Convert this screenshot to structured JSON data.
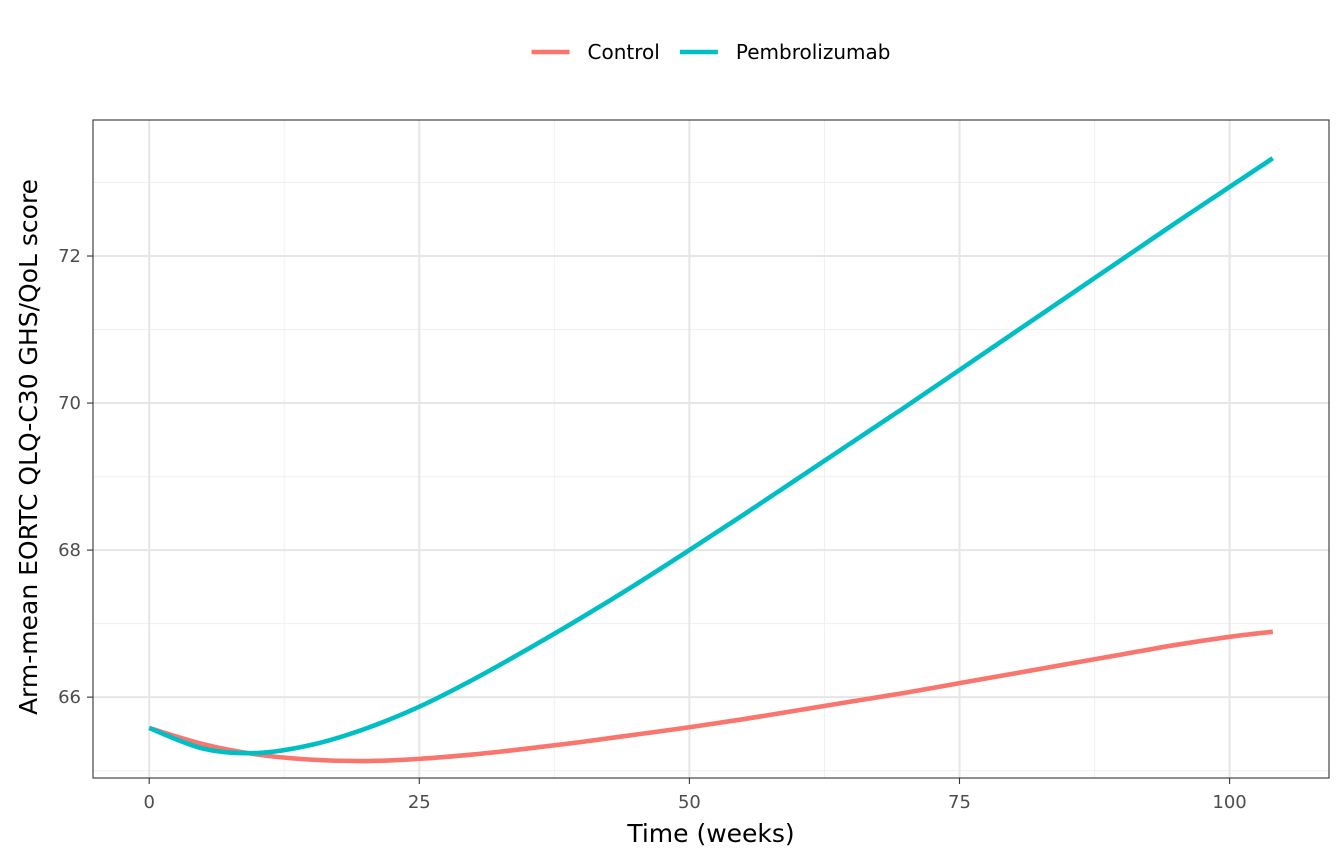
{
  "chart_data": {
    "type": "line",
    "title": "",
    "xlabel": "Time (weeks)",
    "ylabel": "Arm-mean EORTC QLQ-C30 GHS/QoL score",
    "xlim": [
      -5.2,
      109.2
    ],
    "ylim": [
      64.9,
      73.85
    ],
    "x_ticks": [
      0,
      25,
      50,
      75,
      100
    ],
    "x_tick_labels": [
      "0",
      "25",
      "50",
      "75",
      "100"
    ],
    "y_ticks": [
      66,
      68,
      70,
      72
    ],
    "y_tick_labels": [
      "66",
      "68",
      "70",
      "72"
    ],
    "grid": true,
    "legend_position": "top",
    "series": [
      {
        "name": "Control",
        "color": "#F8766D",
        "x": [
          0,
          5,
          10,
          15,
          20,
          25,
          30,
          35,
          40,
          45,
          50,
          55,
          60,
          65,
          70,
          75,
          80,
          85,
          90,
          95,
          100,
          104
        ],
        "y": [
          65.58,
          65.36,
          65.22,
          65.15,
          65.13,
          65.16,
          65.22,
          65.3,
          65.39,
          65.49,
          65.59,
          65.7,
          65.82,
          65.94,
          66.06,
          66.19,
          66.32,
          66.45,
          66.58,
          66.71,
          66.82,
          66.89
        ]
      },
      {
        "name": "Pembrolizumab",
        "color": "#00BFC4",
        "x": [
          0,
          5,
          10,
          15,
          20,
          25,
          30,
          35,
          40,
          45,
          50,
          55,
          60,
          65,
          70,
          75,
          80,
          85,
          90,
          95,
          100,
          104
        ],
        "y": [
          65.58,
          65.3,
          65.24,
          65.35,
          65.57,
          65.87,
          66.24,
          66.65,
          67.08,
          67.53,
          68.0,
          68.48,
          68.97,
          69.46,
          69.95,
          70.45,
          70.95,
          71.45,
          71.95,
          72.45,
          72.94,
          73.33
        ]
      }
    ]
  }
}
